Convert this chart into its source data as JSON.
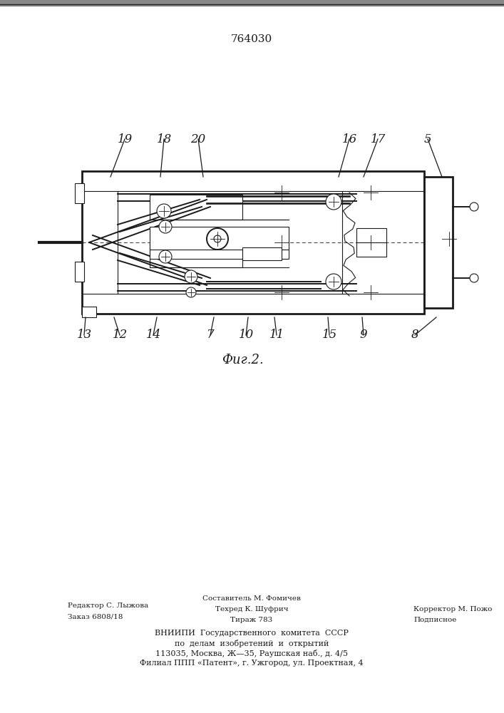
{
  "patent_number": "764030",
  "figure_label": "Фиг.2.",
  "bg_color": "#ffffff",
  "line_color": "#1a1a1a",
  "header_stripe_color": "#888888",
  "editor_line1": "Редактор С. Лыжова",
  "editor_line2": "Заказ 6808/18",
  "tech_line1": "Составитель М. Фомичев",
  "tech_line2": "Техред К. Шуфрич",
  "tech_line3": "Тираж 783",
  "corr_line1": "Корректор М. Пожо",
  "corr_line2": "Подписное",
  "footer_line1": "ВНИИПИ  Государственного  комитета  СССР",
  "footer_line2": "по  делам  изобретений  и  открытий",
  "footer_line3": "113035, Москва, Ж—35, Раушская наб., д. 4/5",
  "footer_line4": "Филиал ППП «Патент», г. Ужгород, ул. Проектная, 4"
}
